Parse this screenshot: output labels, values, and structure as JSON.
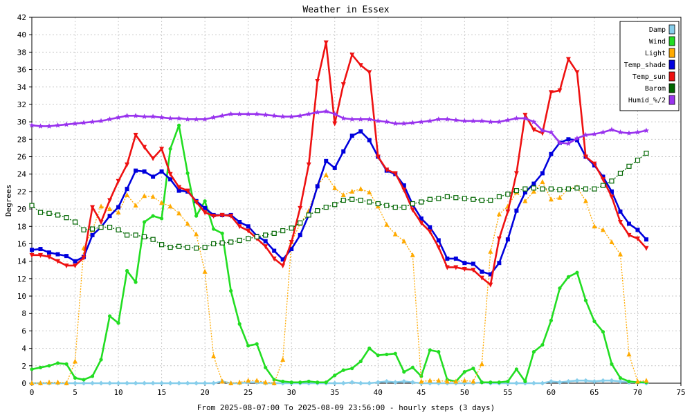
{
  "chart_data": {
    "type": "line",
    "title": "Weather in Essex",
    "xlabel": "From 2025-08-07:00 To 2025-08-09 23:56:00 - hourly steps (3 days)",
    "ylabel": "Degrees",
    "xlim": [
      0,
      75
    ],
    "ylim": [
      0,
      42
    ],
    "x_ticks": [
      0,
      5,
      10,
      15,
      20,
      25,
      30,
      35,
      40,
      45,
      50,
      55,
      60,
      65,
      70,
      75
    ],
    "y_ticks": [
      0,
      2,
      4,
      6,
      8,
      10,
      12,
      14,
      16,
      18,
      20,
      22,
      24,
      26,
      28,
      30,
      32,
      34,
      36,
      38,
      40,
      42
    ],
    "grid": true,
    "legend_position": "top-right",
    "series": [
      {
        "name": "Damp",
        "color": "#87ceeb",
        "marker": "diamond",
        "values": [
          0,
          0,
          0,
          0,
          0,
          0,
          0,
          0,
          0,
          0,
          0,
          0,
          0,
          0,
          0,
          0,
          0,
          0,
          0,
          0,
          0,
          0,
          0.2,
          0,
          0,
          0.1,
          0.1,
          0,
          0,
          0,
          0,
          0,
          0,
          0,
          0,
          0,
          0,
          0.1,
          0,
          0,
          0.1,
          0.2,
          0.1,
          0.2,
          0.1,
          0,
          0,
          0,
          0,
          0,
          0,
          0,
          0.1,
          0,
          0,
          0,
          0,
          0,
          0,
          0,
          0.2,
          0.1,
          0.2,
          0.3,
          0.3,
          0.2,
          0.3,
          0.3,
          0.2,
          0.1,
          0.1,
          0
        ]
      },
      {
        "name": "Wind",
        "color": "#22dd22",
        "marker": "circle",
        "values": [
          1.6,
          1.8,
          2.0,
          2.3,
          2.2,
          0.6,
          0.4,
          0.8,
          2.7,
          7.7,
          6.9,
          12.9,
          11.6,
          18.5,
          19.2,
          18.9,
          26.9,
          29.6,
          24.1,
          19.2,
          20.9,
          17.7,
          17.2,
          10.6,
          6.8,
          4.3,
          4.5,
          1.8,
          0.4,
          0.2,
          0.1,
          0.1,
          0.2,
          0.1,
          0.1,
          0.9,
          1.5,
          1.7,
          2.5,
          4.0,
          3.2,
          3.3,
          3.4,
          1.3,
          1.8,
          0.8,
          3.8,
          3.6,
          0.4,
          0.2,
          1.3,
          1.7,
          0.1,
          0.1,
          0.1,
          0.2,
          1.6,
          0.2,
          3.6,
          4.4,
          7.2,
          10.9,
          12.2,
          12.7,
          9.5,
          7.1,
          5.9,
          2.2,
          0.6,
          0.2,
          0.1,
          0.1
        ]
      },
      {
        "name": "Light",
        "color": "#ffaa00",
        "marker": "triangle",
        "values": [
          0,
          0,
          0.1,
          0.1,
          0,
          2.5,
          15.5,
          17.6,
          20.3,
          20.0,
          19.6,
          21.6,
          20.4,
          21.5,
          21.4,
          20.7,
          20.3,
          19.5,
          18.3,
          17.1,
          12.8,
          3.1,
          0.2,
          0,
          0.1,
          0.3,
          0.3,
          0.1,
          0,
          2.7,
          16.2,
          18.3,
          19.8,
          22.7,
          23.9,
          22.4,
          21.6,
          22.0,
          22.3,
          21.9,
          20.3,
          18.2,
          17.1,
          16.3,
          14.7,
          0.2,
          0.3,
          0.3,
          0.2,
          0.2,
          0.3,
          0.2,
          2.2,
          15.1,
          19.4,
          20.3,
          21.9,
          20.9,
          22.0,
          23.1,
          21.1,
          21.3,
          22.3,
          22.5,
          20.9,
          18.0,
          17.6,
          16.2,
          14.8,
          3.3,
          0.2,
          0.3
        ]
      },
      {
        "name": "Temp_shade",
        "color": "#0000dd",
        "marker": "square",
        "values": [
          15.3,
          15.4,
          15.0,
          14.8,
          14.6,
          14.0,
          14.5,
          17.0,
          17.9,
          19.2,
          20.2,
          22.3,
          24.4,
          24.3,
          23.7,
          24.3,
          23.4,
          22.1,
          22.0,
          20.9,
          20.1,
          19.3,
          19.3,
          19.3,
          18.5,
          18.0,
          16.9,
          16.3,
          15.2,
          14.2,
          15.4,
          17.0,
          19.3,
          22.6,
          25.5,
          24.7,
          26.6,
          28.4,
          28.9,
          27.9,
          26.0,
          24.4,
          24.0,
          22.7,
          20.5,
          18.9,
          17.9,
          16.4,
          14.3,
          14.3,
          13.8,
          13.7,
          12.8,
          12.5,
          13.8,
          16.5,
          19.8,
          21.9,
          22.9,
          24.1,
          26.3,
          27.6,
          28.0,
          27.9,
          26.0,
          25.0,
          23.7,
          22.0,
          19.7,
          18.3,
          17.6,
          16.5
        ]
      },
      {
        "name": "Temp_sun",
        "color": "#ee1111",
        "marker": "triangle-down",
        "values": [
          14.7,
          14.7,
          14.5,
          14.0,
          13.5,
          13.5,
          14.4,
          20.2,
          18.5,
          21.0,
          23.2,
          25.1,
          28.5,
          27.1,
          25.8,
          26.9,
          24.0,
          22.5,
          22.1,
          20.8,
          19.6,
          19.2,
          19.3,
          19.2,
          18.0,
          17.5,
          16.6,
          15.7,
          14.3,
          13.5,
          16.2,
          20.1,
          25.1,
          34.7,
          39.1,
          29.8,
          34.3,
          37.7,
          36.5,
          35.7,
          26.0,
          24.5,
          24.1,
          22.2,
          19.9,
          18.4,
          17.4,
          15.6,
          13.3,
          13.3,
          13.1,
          13.0,
          12.1,
          11.3,
          16.6,
          19.7,
          24.1,
          30.8,
          29.1,
          28.7,
          33.4,
          33.6,
          37.2,
          35.7,
          26.0,
          25.2,
          23.4,
          21.4,
          18.5,
          17.0,
          16.6,
          15.5
        ]
      },
      {
        "name": "Barom",
        "color": "#006600",
        "marker": "open-square",
        "values": [
          20.4,
          19.6,
          19.5,
          19.3,
          19.0,
          18.5,
          17.6,
          17.7,
          17.9,
          17.9,
          17.6,
          17.0,
          17.0,
          16.8,
          16.5,
          15.9,
          15.6,
          15.7,
          15.6,
          15.5,
          15.6,
          16.0,
          16.1,
          16.2,
          16.4,
          16.6,
          16.8,
          17.0,
          17.2,
          17.5,
          17.8,
          18.4,
          19.3,
          19.8,
          20.2,
          20.5,
          21.0,
          21.1,
          21.0,
          20.8,
          20.6,
          20.4,
          20.2,
          20.2,
          20.6,
          20.8,
          21.1,
          21.2,
          21.4,
          21.3,
          21.2,
          21.1,
          21.0,
          21.0,
          21.4,
          21.7,
          22.1,
          22.3,
          22.4,
          22.3,
          22.3,
          22.2,
          22.3,
          22.4,
          22.3,
          22.3,
          22.7,
          23.2,
          24.1,
          24.9,
          25.6,
          26.4
        ]
      },
      {
        "name": "Humid_%/2",
        "color": "#9933ee",
        "marker": "star",
        "values": [
          29.6,
          29.5,
          29.5,
          29.6,
          29.7,
          29.8,
          29.9,
          30.0,
          30.1,
          30.3,
          30.5,
          30.7,
          30.7,
          30.6,
          30.6,
          30.5,
          30.4,
          30.4,
          30.3,
          30.3,
          30.3,
          30.5,
          30.7,
          30.9,
          30.9,
          30.9,
          30.9,
          30.8,
          30.7,
          30.6,
          30.6,
          30.7,
          30.9,
          31.1,
          31.2,
          30.9,
          30.4,
          30.3,
          30.3,
          30.3,
          30.1,
          30.0,
          29.8,
          29.8,
          29.9,
          30.0,
          30.1,
          30.3,
          30.3,
          30.2,
          30.1,
          30.1,
          30.1,
          30.0,
          30.0,
          30.2,
          30.4,
          30.4,
          30.0,
          29.0,
          28.8,
          27.6,
          27.5,
          28.1,
          28.5,
          28.6,
          28.8,
          29.1,
          28.8,
          28.7,
          28.8,
          29.0
        ]
      }
    ]
  }
}
